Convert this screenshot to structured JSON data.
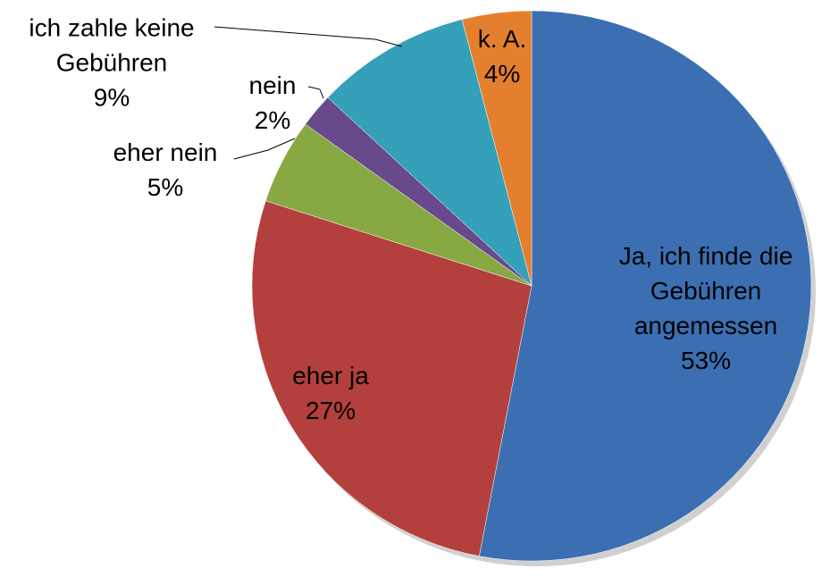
{
  "chart_data": {
    "type": "pie",
    "categories": [
      "Ja, ich finde die Gebühren angemessen",
      "eher ja",
      "eher nein",
      "nein",
      "ich zahle keine Gebühren",
      "k. A."
    ],
    "values": [
      53,
      27,
      5,
      2,
      9,
      4
    ],
    "value_labels": [
      "53%",
      "27%",
      "5%",
      "2%",
      "9%",
      "4%"
    ],
    "colors": [
      "#3b6fb1",
      "#b3403c",
      "#88a844",
      "#67498c",
      "#34a0b9",
      "#e4802d"
    ]
  }
}
